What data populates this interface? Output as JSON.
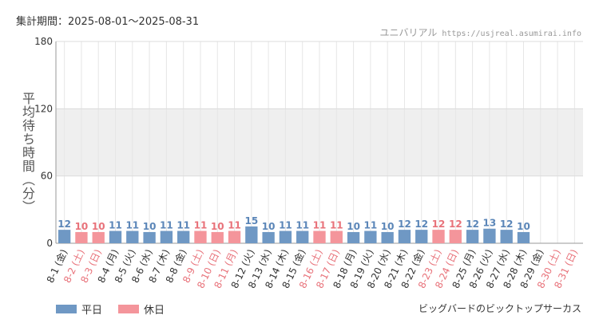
{
  "header": {
    "period": "集計期間：2025-08-01～2025-08-31",
    "brand": "ユニバリアル",
    "brand_url": "https://usjreal.asumirai.info"
  },
  "footer": {
    "attraction": "ビッグバードのビックトップサーカス"
  },
  "colors": {
    "weekday": "#6f98c4",
    "holiday": "#f4959b",
    "weekday_text": "#5b86b8",
    "holiday_text": "#e8727a",
    "band": "#efefef"
  },
  "chart_data": {
    "type": "bar",
    "ylabel": "平均待ち時間（分）",
    "ylim": [
      0,
      180
    ],
    "yticks": [
      0,
      60,
      120,
      180
    ],
    "shaded_band": [
      60,
      120
    ],
    "grid": true,
    "legend_position": "bottom-left",
    "legend": [
      {
        "key": "weekday",
        "label": "平日"
      },
      {
        "key": "holiday",
        "label": "休日"
      }
    ],
    "categories": [
      "8-1 (金)",
      "8-2 (土)",
      "8-3 (日)",
      "8-4 (月)",
      "8-5 (火)",
      "8-6 (水)",
      "8-7 (木)",
      "8-8 (金)",
      "8-9 (土)",
      "8-10 (日)",
      "8-11 (月)",
      "8-12 (火)",
      "8-13 (水)",
      "8-14 (木)",
      "8-15 (金)",
      "8-16 (土)",
      "8-17 (日)",
      "8-18 (月)",
      "8-19 (火)",
      "8-20 (水)",
      "8-21 (木)",
      "8-22 (金)",
      "8-23 (土)",
      "8-24 (日)",
      "8-25 (月)",
      "8-26 (火)",
      "8-27 (水)",
      "8-28 (木)",
      "8-29 (金)",
      "8-30 (土)",
      "8-31 (日)"
    ],
    "values": [
      12,
      10,
      10,
      11,
      11,
      10,
      11,
      11,
      11,
      10,
      11,
      15,
      10,
      11,
      11,
      11,
      11,
      10,
      11,
      10,
      12,
      12,
      12,
      12,
      12,
      13,
      12,
      10,
      null,
      null,
      null
    ],
    "day_type": [
      "weekday",
      "holiday",
      "holiday",
      "weekday",
      "weekday",
      "weekday",
      "weekday",
      "weekday",
      "holiday",
      "holiday",
      "holiday",
      "weekday",
      "weekday",
      "weekday",
      "weekday",
      "holiday",
      "holiday",
      "weekday",
      "weekday",
      "weekday",
      "weekday",
      "weekday",
      "holiday",
      "holiday",
      "weekday",
      "weekday",
      "weekday",
      "weekday",
      "weekday",
      "holiday",
      "holiday"
    ]
  }
}
